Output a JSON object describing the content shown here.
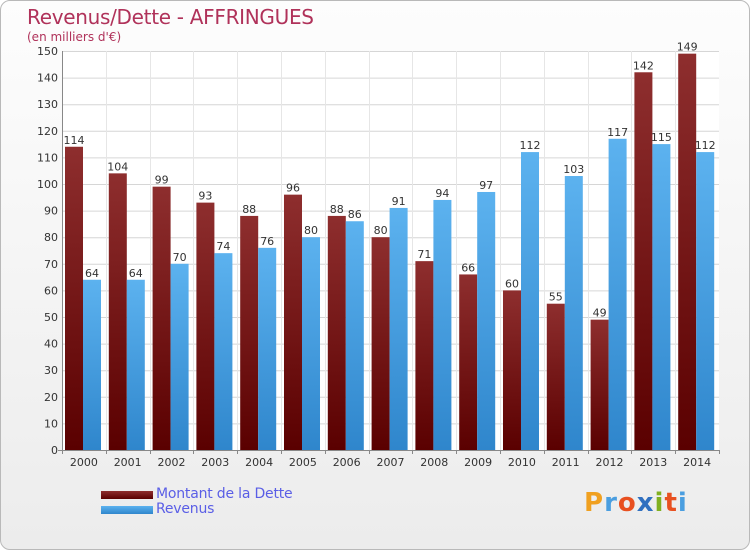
{
  "title": "Revenus/Dette - AFFRINGUES",
  "subtitle": "(en milliers d'€)",
  "brand": {
    "letters": [
      "P",
      "r",
      "o",
      "x",
      "i",
      "t",
      "i"
    ],
    "colors": [
      "#f0a020",
      "#4a9ee0",
      "#e85020",
      "#3070c0",
      "#80b020",
      "#e85020",
      "#4a9ee0"
    ]
  },
  "chart_data": {
    "type": "bar",
    "categories": [
      "2000",
      "2001",
      "2002",
      "2003",
      "2004",
      "2005",
      "2006",
      "2007",
      "2008",
      "2009",
      "2010",
      "2011",
      "2012",
      "2013",
      "2014"
    ],
    "series": [
      {
        "name": "Montant de la Dette",
        "values": [
          114,
          104,
          99,
          93,
          88,
          96,
          88,
          80,
          71,
          66,
          60,
          55,
          49,
          142,
          149
        ],
        "color": "#7a1a1a"
      },
      {
        "name": "Revenus",
        "values": [
          64,
          64,
          70,
          74,
          76,
          80,
          86,
          91,
          94,
          97,
          112,
          103,
          117,
          115,
          112
        ],
        "color": "#4aa3e3"
      }
    ],
    "y_ticks": [
      0,
      10,
      20,
      30,
      40,
      50,
      60,
      70,
      80,
      90,
      100,
      110,
      120,
      130,
      140,
      150
    ],
    "ylim": [
      0,
      150
    ],
    "grid": true,
    "legend_position": "bottom-left"
  }
}
